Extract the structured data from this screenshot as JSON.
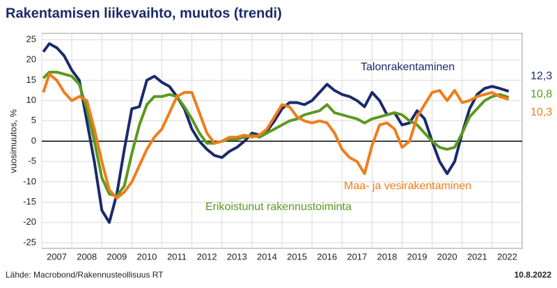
{
  "chart_data": {
    "type": "line",
    "title": "Rakentamisen liikevaihto, muutos (trendi)",
    "y_label": "vuosimuutos, %",
    "source": "Lähde: Macrobond/Rakennusteollisuus RT",
    "date": "10.8.2022",
    "x": [
      2007.05,
      2007.25,
      2007.5,
      2007.75,
      2008,
      2008.25,
      2008.5,
      2008.75,
      2009,
      2009.25,
      2009.5,
      2009.75,
      2010,
      2010.25,
      2010.5,
      2010.75,
      2011,
      2011.25,
      2011.5,
      2011.75,
      2012,
      2012.25,
      2012.5,
      2012.75,
      2013,
      2013.25,
      2013.5,
      2013.75,
      2014,
      2014.25,
      2014.5,
      2014.75,
      2015,
      2015.25,
      2015.5,
      2015.75,
      2016,
      2016.25,
      2016.5,
      2016.75,
      2017,
      2017.25,
      2017.5,
      2017.75,
      2018,
      2018.25,
      2018.5,
      2018.75,
      2019,
      2019.25,
      2019.5,
      2019.75,
      2020,
      2020.25,
      2020.5,
      2020.75,
      2021,
      2021.25,
      2021.5,
      2021.75,
      2022,
      2022.25,
      2022.55
    ],
    "series": [
      {
        "name": "Talonrakentaminen",
        "color": "#1b2a6b",
        "values": [
          22,
          24,
          23,
          21,
          17.5,
          15,
          5,
          -5,
          -17,
          -20,
          -13,
          -2,
          8,
          8.5,
          15,
          16,
          14.5,
          13.5,
          11,
          8,
          3,
          0,
          -2,
          -3.5,
          -4,
          -2.5,
          -1.5,
          0,
          2,
          1.5,
          2.5,
          5,
          8,
          9.5,
          9.5,
          9,
          10,
          12,
          14,
          12.5,
          11.5,
          11,
          10,
          8.5,
          12,
          10,
          6.5,
          7,
          4,
          4.5,
          7.5,
          5.5,
          0,
          -5,
          -8,
          -5,
          2,
          8,
          11.5,
          13,
          13.5,
          13,
          12.3
        ],
        "value_labels": [
          null,
          null,
          null,
          null,
          null,
          null,
          null,
          null,
          null,
          null,
          null,
          null,
          null,
          null,
          null,
          null,
          null,
          null,
          null,
          null,
          null,
          null,
          null,
          null,
          null,
          null,
          null,
          null,
          null,
          null,
          null,
          null,
          null,
          null,
          null,
          null,
          null,
          null,
          null,
          null,
          null,
          null,
          null,
          null,
          null,
          null,
          null,
          null,
          null,
          null,
          null,
          null,
          null,
          null,
          null,
          null,
          null,
          null,
          null,
          null,
          null,
          null,
          "12,3"
        ]
      },
      {
        "name": "Erikoistunut rakennustoiminta",
        "color": "#5a9a1e",
        "values": [
          15.5,
          17,
          17,
          16.5,
          16,
          14,
          8,
          0,
          -9,
          -13,
          -13.5,
          -11,
          -3,
          4,
          9,
          11,
          11,
          11.5,
          11,
          8.5,
          5.5,
          2,
          -0.5,
          -0.5,
          0,
          0.5,
          0.5,
          1,
          1.5,
          1,
          2,
          3,
          4,
          5,
          5.5,
          6.5,
          7,
          7.5,
          9,
          7,
          6.5,
          6,
          5.5,
          4.5,
          5.5,
          6,
          6.5,
          7,
          6.5,
          5,
          4,
          2,
          0,
          -1.5,
          -2,
          -1.5,
          2,
          6,
          8,
          10,
          11,
          11.5,
          10.8
        ],
        "value_labels": [
          null,
          null,
          null,
          null,
          null,
          null,
          null,
          null,
          null,
          null,
          null,
          null,
          null,
          null,
          null,
          null,
          null,
          null,
          null,
          null,
          null,
          null,
          null,
          null,
          null,
          null,
          null,
          null,
          null,
          null,
          null,
          null,
          null,
          null,
          null,
          null,
          null,
          null,
          null,
          null,
          null,
          null,
          null,
          null,
          null,
          null,
          null,
          null,
          null,
          null,
          null,
          null,
          null,
          null,
          null,
          null,
          null,
          null,
          null,
          null,
          null,
          null,
          "10,8"
        ]
      },
      {
        "name": "Maa- ja vesirakentaminen",
        "color": "#f07d1a",
        "values": [
          12,
          16.5,
          15,
          12,
          10,
          11,
          10,
          3,
          -5,
          -12,
          -14,
          -12.5,
          -10,
          -6,
          -2,
          1,
          3,
          7,
          11,
          12,
          12,
          7,
          2,
          -0.5,
          0,
          1,
          1,
          1.5,
          1,
          1.5,
          3,
          6,
          9,
          8.5,
          6,
          5,
          4.5,
          5,
          4.5,
          2,
          -2,
          -4,
          -5,
          -8,
          -1,
          4,
          4.5,
          3,
          -1.5,
          0,
          6,
          9,
          12,
          12.5,
          10,
          12.5,
          9.5,
          10,
          11,
          11.5,
          12,
          11,
          10.3
        ],
        "value_labels": [
          null,
          null,
          null,
          null,
          null,
          null,
          null,
          null,
          null,
          null,
          null,
          null,
          null,
          null,
          null,
          null,
          null,
          null,
          null,
          null,
          null,
          null,
          null,
          null,
          null,
          null,
          null,
          null,
          null,
          null,
          null,
          null,
          null,
          null,
          null,
          null,
          null,
          null,
          null,
          null,
          null,
          null,
          null,
          null,
          null,
          null,
          null,
          null,
          null,
          null,
          null,
          null,
          null,
          null,
          null,
          null,
          null,
          null,
          null,
          null,
          null,
          null,
          "10,3"
        ]
      }
    ],
    "xlim": [
      2007,
      2023
    ],
    "xticks": [
      2007,
      2008,
      2009,
      2010,
      2011,
      2012,
      2013,
      2014,
      2015,
      2016,
      2017,
      2018,
      2019,
      2020,
      2021,
      2022
    ],
    "ylim": [
      -25,
      25
    ],
    "yticks": [
      -25,
      -20,
      -15,
      -10,
      -5,
      0,
      5,
      10,
      15,
      20,
      25
    ],
    "grid": true
  }
}
